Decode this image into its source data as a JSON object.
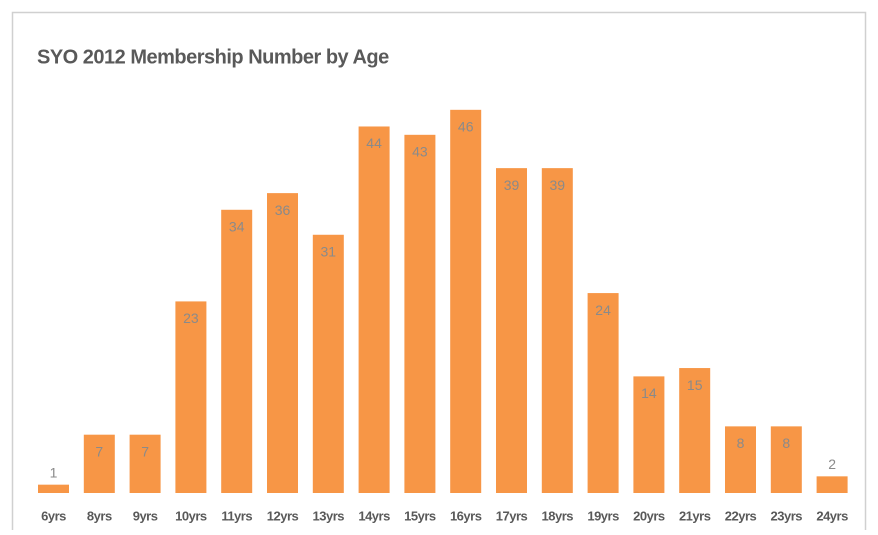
{
  "chart_data": {
    "type": "bar",
    "title": "SYO 2012 Membership Number by Age",
    "categories": [
      "6yrs",
      "8yrs",
      "9yrs",
      "10yrs",
      "11yrs",
      "12yrs",
      "13yrs",
      "14yrs",
      "15yrs",
      "16yrs",
      "17yrs",
      "18yrs",
      "19yrs",
      "20yrs",
      "21yrs",
      "22yrs",
      "23yrs",
      "24yrs"
    ],
    "values": [
      1,
      7,
      7,
      23,
      34,
      36,
      31,
      44,
      43,
      46,
      39,
      39,
      24,
      14,
      15,
      8,
      8,
      2
    ],
    "color": "#f79646"
  }
}
